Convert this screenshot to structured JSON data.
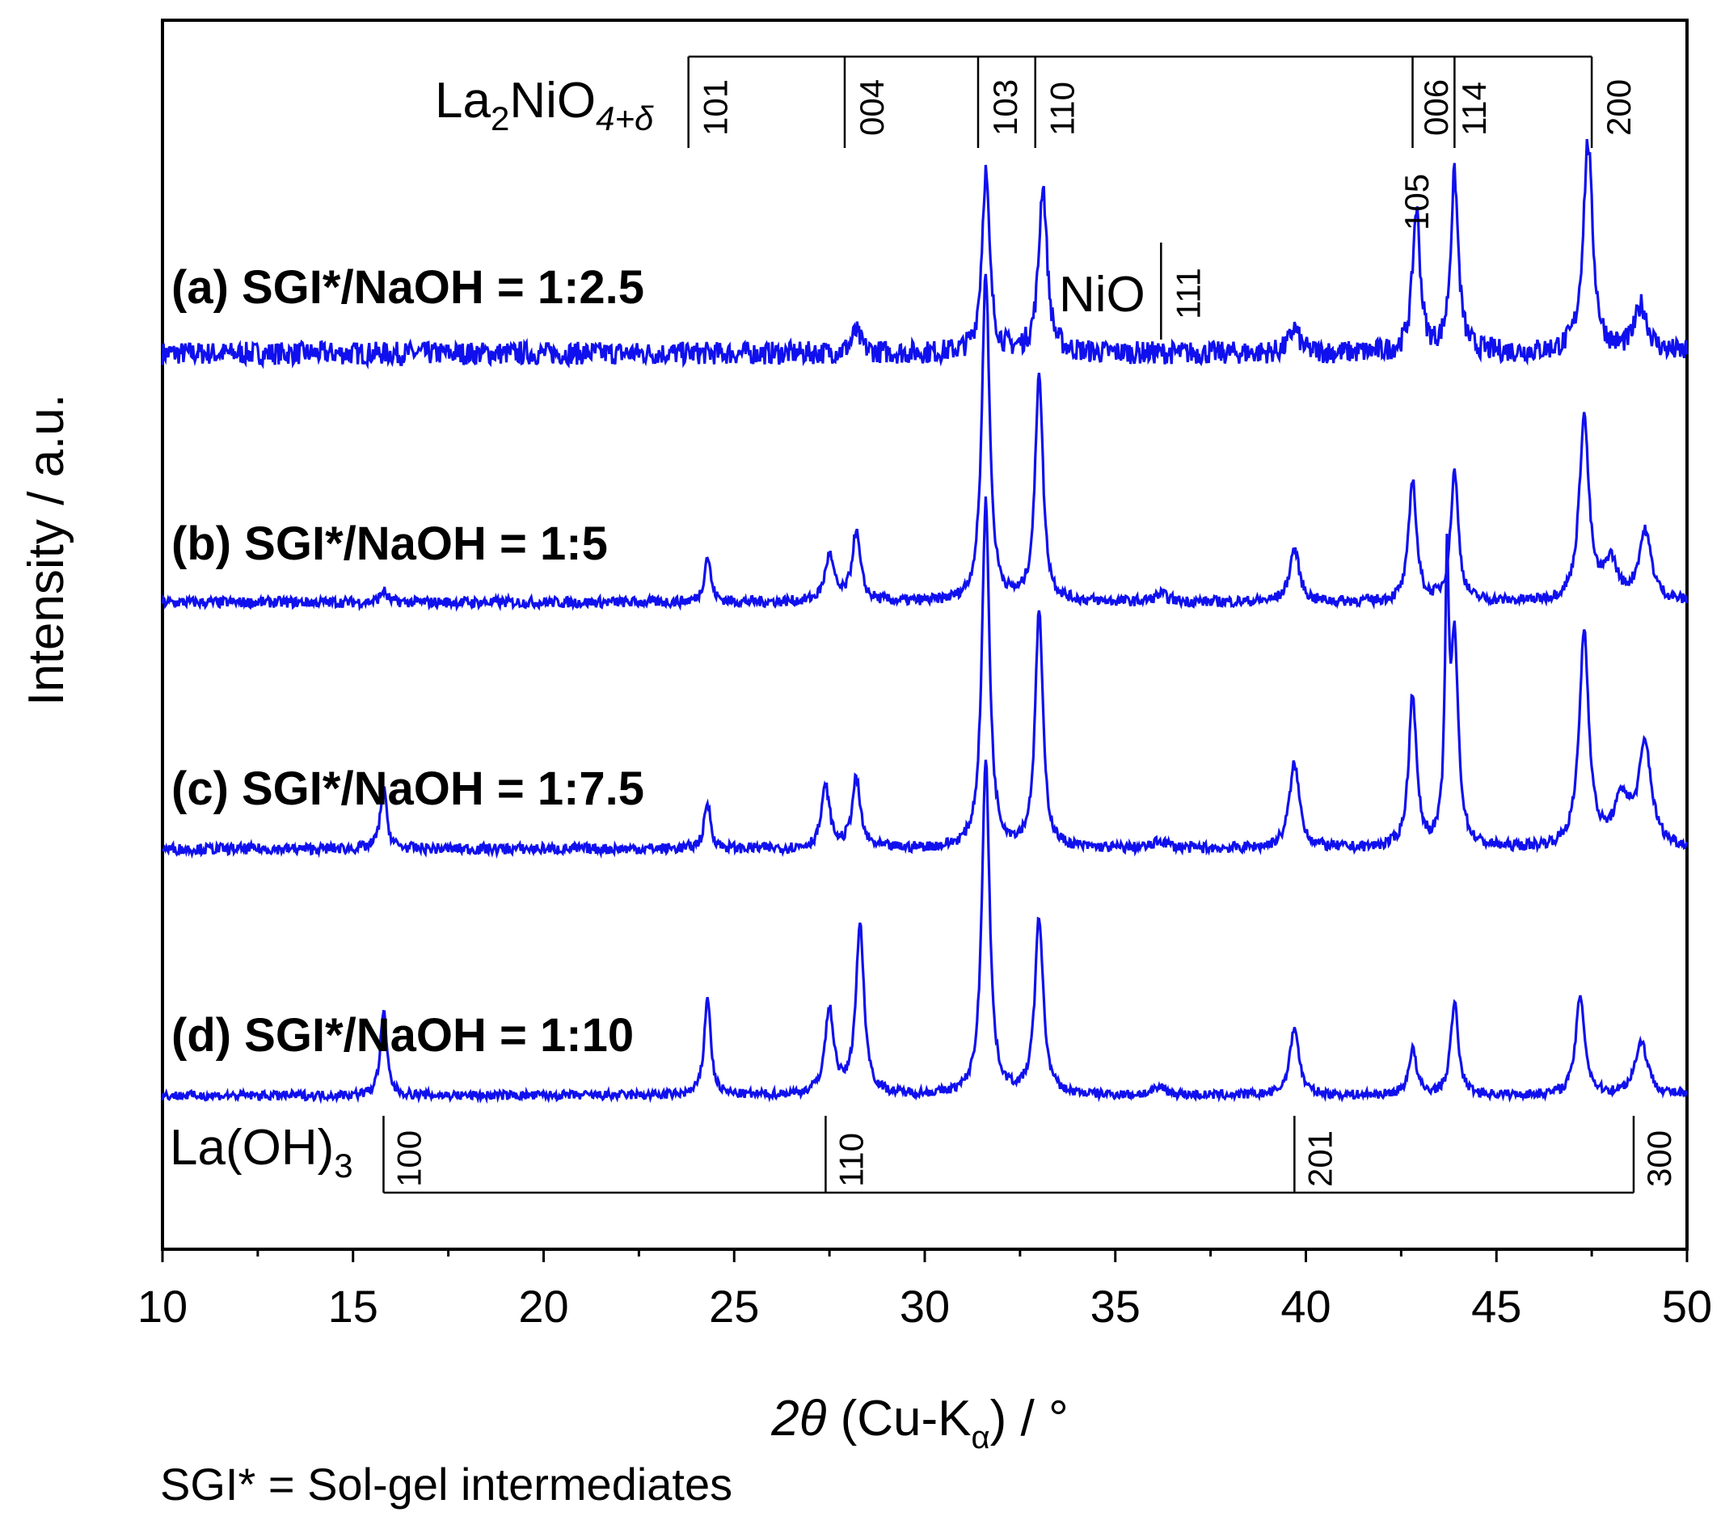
{
  "chart_data": {
    "type": "line",
    "xlabel": {
      "main": "2θ (Cu-K",
      "sub": "α",
      "tail": ") / °"
    },
    "ylabel": "Intensity / a.u.",
    "xlim": [
      10,
      50
    ],
    "x_ticks": [
      10,
      15,
      20,
      25,
      30,
      35,
      40,
      45,
      50
    ],
    "x_minor_step": 2.5,
    "y_ticks_shown": false,
    "grid": false,
    "legend": "none",
    "line_color": "#1010ee",
    "series": [
      {
        "name": "(a) SGI*/NaOH = 1:2.5",
        "noise": 0.55,
        "peaks": [
          [
            28.2,
            0.5,
            0.15
          ],
          [
            31.6,
            4.3,
            0.12
          ],
          [
            33.1,
            4.0,
            0.13
          ],
          [
            39.7,
            0.6,
            0.15
          ],
          [
            42.9,
            3.4,
            0.12
          ],
          [
            43.9,
            4.2,
            0.12
          ],
          [
            47.4,
            5.0,
            0.15
          ],
          [
            48.8,
            1.1,
            0.2
          ]
        ]
      },
      {
        "name": "(b) SGI*/NaOH = 1:5",
        "noise": 0.14,
        "peaks": [
          [
            15.8,
            0.15,
            0.1
          ],
          [
            24.3,
            0.6,
            0.1
          ],
          [
            27.5,
            0.6,
            0.14
          ],
          [
            28.2,
            0.9,
            0.13
          ],
          [
            31.6,
            4.3,
            0.12
          ],
          [
            33.0,
            3.0,
            0.12
          ],
          [
            36.2,
            0.1,
            0.2
          ],
          [
            39.7,
            0.7,
            0.15
          ],
          [
            42.8,
            1.6,
            0.12
          ],
          [
            43.9,
            1.7,
            0.12
          ],
          [
            47.3,
            2.4,
            0.15
          ],
          [
            48.0,
            0.5,
            0.2
          ],
          [
            48.9,
            0.9,
            0.2
          ]
        ]
      },
      {
        "name": "(c) SGI*/NaOH = 1:7.5",
        "noise": 0.14,
        "peaks": [
          [
            15.8,
            0.8,
            0.1
          ],
          [
            24.3,
            0.6,
            0.1
          ],
          [
            27.4,
            0.8,
            0.13
          ],
          [
            28.2,
            0.9,
            0.13
          ],
          [
            31.6,
            4.5,
            0.12
          ],
          [
            33.0,
            3.1,
            0.12
          ],
          [
            36.2,
            0.1,
            0.2
          ],
          [
            39.7,
            1.1,
            0.16
          ],
          [
            42.8,
            2.0,
            0.12
          ],
          [
            43.7,
            3.3,
            0.06
          ],
          [
            43.9,
            2.6,
            0.12
          ],
          [
            47.3,
            2.8,
            0.15
          ],
          [
            48.3,
            0.6,
            0.25
          ],
          [
            48.9,
            1.3,
            0.2
          ]
        ]
      },
      {
        "name": "(d) SGI*/NaOH = 1:10",
        "noise": 0.12,
        "peaks": [
          [
            15.8,
            1.1,
            0.1
          ],
          [
            24.3,
            1.3,
            0.1
          ],
          [
            27.5,
            1.1,
            0.14
          ],
          [
            28.3,
            2.2,
            0.13
          ],
          [
            31.6,
            4.4,
            0.12
          ],
          [
            33.0,
            2.3,
            0.13
          ],
          [
            36.2,
            0.1,
            0.2
          ],
          [
            39.7,
            0.9,
            0.14
          ],
          [
            42.8,
            0.6,
            0.12
          ],
          [
            43.9,
            1.2,
            0.12
          ],
          [
            47.2,
            1.3,
            0.14
          ],
          [
            48.8,
            0.7,
            0.2
          ]
        ]
      }
    ],
    "reference_patterns": [
      {
        "phase_main": "La",
        "phase_parts": [
          "La",
          "2",
          "NiO",
          "4+δ"
        ],
        "reflections": [
          {
            "hkl": "101",
            "x": 23.8
          },
          {
            "hkl": "004",
            "x": 27.9
          },
          {
            "hkl": "103",
            "x": 31.4
          },
          {
            "hkl": "110",
            "x": 32.9
          },
          {
            "hkl": "105",
            "x": 42.8
          },
          {
            "hkl": "006",
            "x": 43.9
          },
          {
            "hkl": "114",
            "x": 43.9
          },
          {
            "hkl": "200",
            "x": 47.5
          }
        ]
      },
      {
        "phase": "NiO",
        "reflections": [
          {
            "hkl": "111",
            "x": 36.2
          }
        ]
      },
      {
        "phase_parts": [
          "La(OH)",
          "3"
        ],
        "reflections": [
          {
            "hkl": "100",
            "x": 15.8
          },
          {
            "hkl": "110",
            "x": 27.4
          },
          {
            "hkl": "201",
            "x": 39.7
          },
          {
            "hkl": "300",
            "x": 48.6
          }
        ]
      }
    ],
    "footnote": "SGI* = Sol-gel intermediates"
  }
}
